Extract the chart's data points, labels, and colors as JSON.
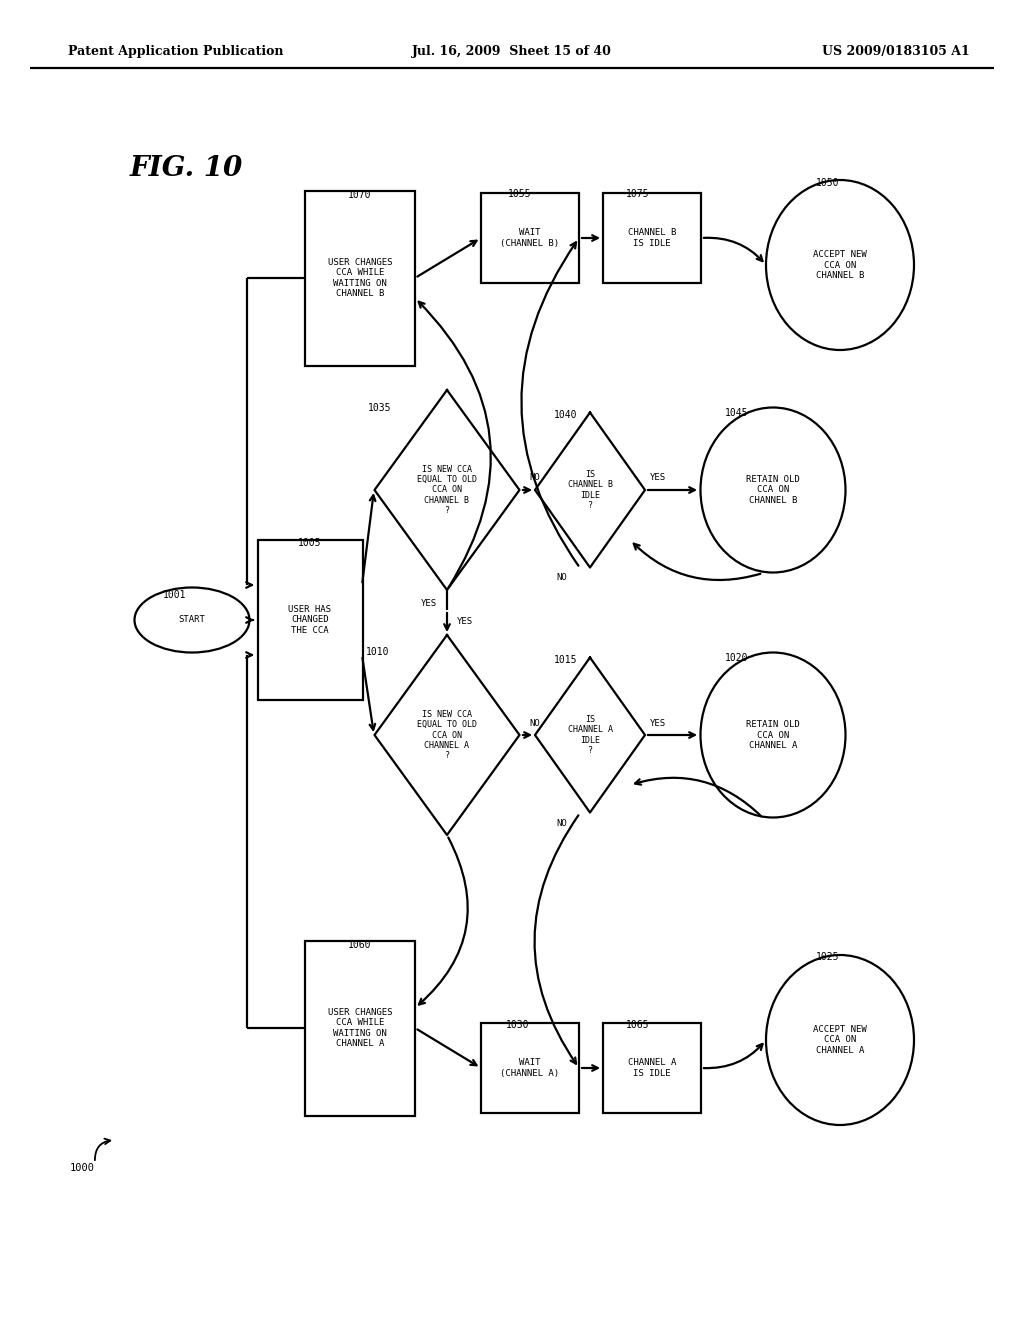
{
  "bg_color": "#ffffff",
  "line_color": "#000000",
  "header_left": "Patent Application Publication",
  "header_mid": "Jul. 16, 2009  Sheet 15 of 40",
  "header_right": "US 2009/0183105 A1",
  "fig_label": "FIG. 10",
  "fig_ref": "1000"
}
